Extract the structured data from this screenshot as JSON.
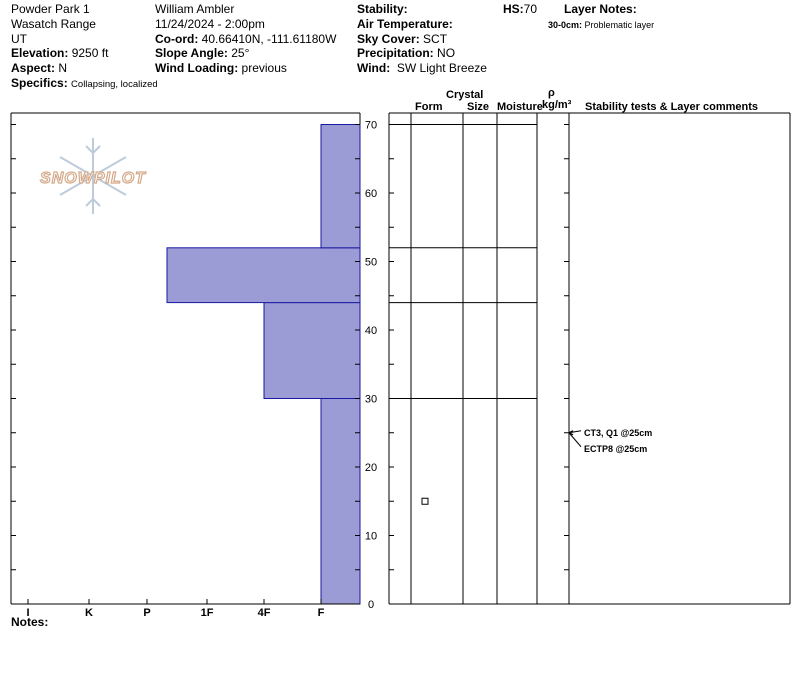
{
  "header": {
    "location": "Powder Park 1",
    "range": "Wasatch Range",
    "state": "UT",
    "elevation_label": "Elevation:",
    "elevation_value": "9250 ft",
    "aspect_label": "Aspect:",
    "aspect_value": "N",
    "specifics_label": "Specifics:",
    "specifics_value": "Collapsing, localized",
    "observer": "William Ambler",
    "datetime": "11/24/2024 - 2:00pm",
    "coord_label": "Co-ord:",
    "coord_value": "40.66410N, -111.61180W",
    "slope_label": "Slope Angle:",
    "slope_value": "25°",
    "wind_loading_label": "Wind Loading:",
    "wind_loading_value": "previous",
    "stability_label": "Stability:",
    "air_temp_label": "Air Temperature:",
    "sky_label": "Sky Cover:",
    "sky_value": "SCT",
    "precip_label": "Precipitation:",
    "precip_value": "NO",
    "wind_label": "Wind:",
    "wind_value": "SW Light Breeze",
    "hs_label": "HS:",
    "hs_value": "70",
    "layer_notes_label": "Layer Notes:",
    "layer_note_depth": "30-0cm:",
    "layer_note_text": "Problematic layer"
  },
  "columns": {
    "crystal": "Crystal",
    "form": "Form",
    "size": "Size",
    "moisture": "Moisture",
    "rho": "ρ",
    "density_unit": "kg/m³",
    "stability_comments": "Stability tests & Layer comments"
  },
  "notes_label": "Notes:",
  "logo_text": "SNOWPILOT",
  "colors": {
    "bar_fill": "#9b9bd6",
    "bar_stroke": "#1a1aa0",
    "logo": "#d4a98a",
    "snowflake": "#b7c6d6"
  },
  "chart_data": {
    "type": "bar",
    "orientation": "horizontal",
    "title": "",
    "xlabel": "",
    "ylabel": "",
    "x_categories": [
      "I",
      "K",
      "P",
      "1F",
      "4F",
      "F"
    ],
    "y_ticks": [
      0,
      10,
      20,
      30,
      40,
      50,
      60,
      70
    ],
    "ylim": [
      0,
      70
    ],
    "layers": [
      {
        "bottom": 0,
        "top": 30,
        "hardness": "F"
      },
      {
        "bottom": 30,
        "top": 44,
        "hardness": "4F"
      },
      {
        "bottom": 44,
        "top": 52,
        "hardness": "1F+"
      },
      {
        "bottom": 52,
        "top": 70,
        "hardness": "F"
      }
    ],
    "layer_boundaries": [
      70,
      52,
      44,
      30
    ],
    "tests": [
      {
        "depth": 25,
        "label": "CT3, Q1 @25cm"
      },
      {
        "depth": 25,
        "label": "ECTP8 @25cm"
      }
    ],
    "grain_marker": {
      "depth": 15,
      "symbol": "square"
    }
  }
}
